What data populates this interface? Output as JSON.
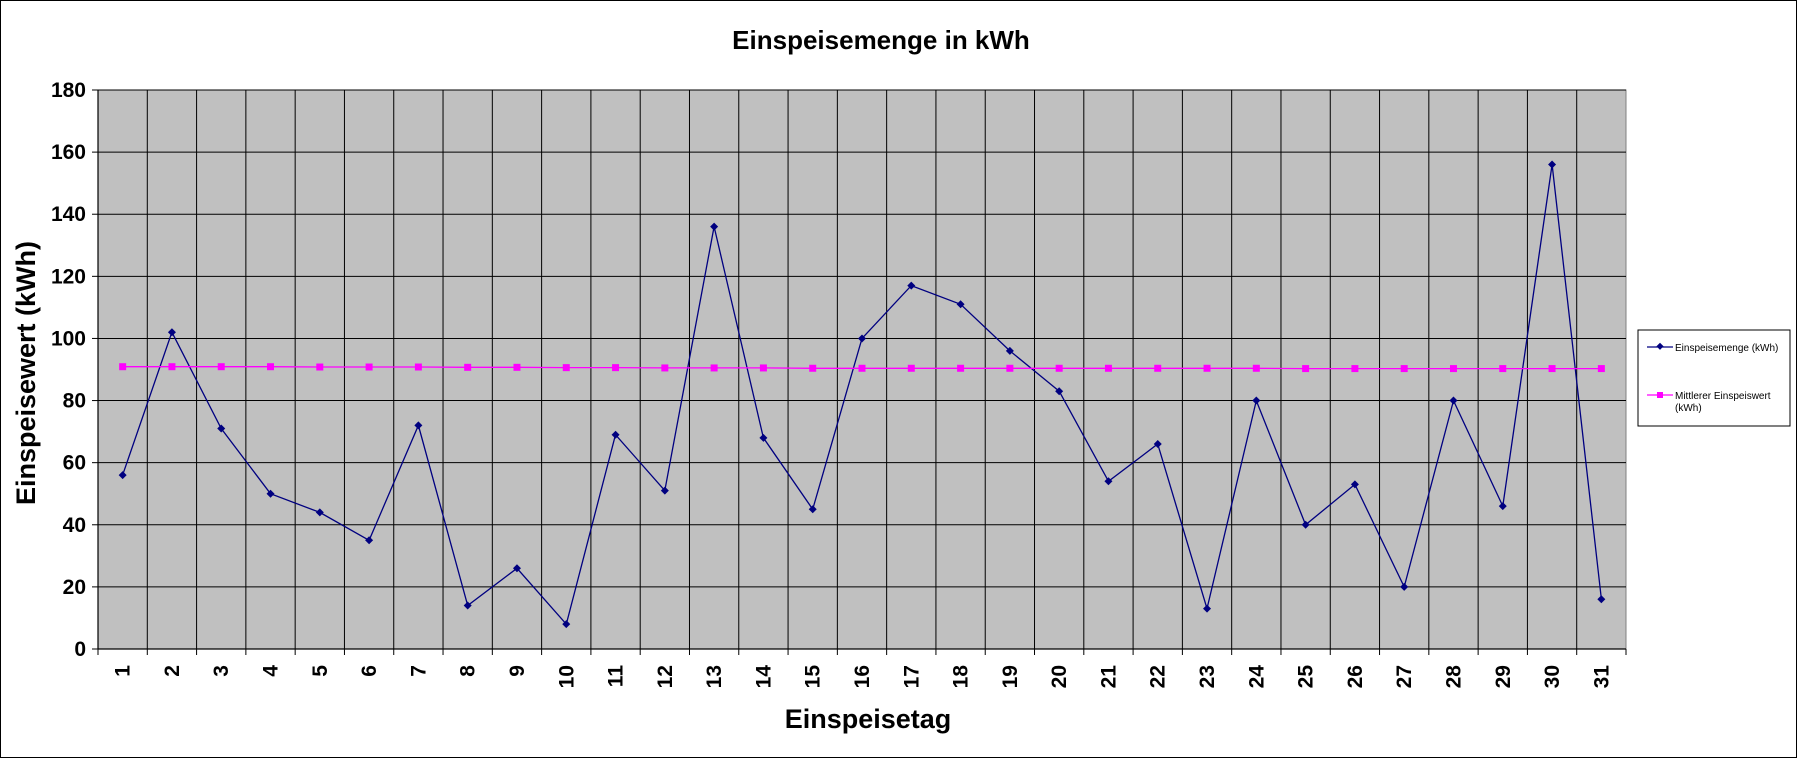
{
  "chart_data": {
    "type": "line",
    "title": "Einspeisemenge in kWh",
    "xlabel": "Einspeisetag",
    "ylabel": "Einspeisewert  (kWh)",
    "categories": [
      "1",
      "2",
      "3",
      "4",
      "5",
      "6",
      "7",
      "8",
      "9",
      "10",
      "11",
      "12",
      "13",
      "14",
      "15",
      "16",
      "17",
      "18",
      "19",
      "20",
      "21",
      "22",
      "23",
      "24",
      "25",
      "26",
      "27",
      "28",
      "29",
      "30",
      "31"
    ],
    "ylim": [
      0,
      180
    ],
    "yticks": [
      0,
      20,
      40,
      60,
      80,
      100,
      120,
      140,
      160,
      180
    ],
    "grid": true,
    "legend_position": "right",
    "plot_background": "#c0c0c0",
    "series": [
      {
        "name": "Einspeisemenge (kWh)",
        "color": "#000080",
        "marker": "diamond",
        "values": [
          56,
          102,
          71,
          50,
          44,
          35,
          72,
          14,
          26,
          8,
          69,
          51,
          136,
          68,
          45,
          100,
          117,
          111,
          96,
          83,
          54,
          66,
          13,
          80,
          40,
          53,
          20,
          80,
          46,
          156,
          16
        ]
      },
      {
        "name": "Mittlerer Einspeiswert (kWh)",
        "color": "#ff00ff",
        "marker": "square",
        "values": [
          90.9,
          90.9,
          90.9,
          90.9,
          90.8,
          90.8,
          90.8,
          90.7,
          90.7,
          90.6,
          90.6,
          90.5,
          90.5,
          90.5,
          90.4,
          90.4,
          90.4,
          90.4,
          90.4,
          90.4,
          90.4,
          90.4,
          90.4,
          90.4,
          90.3,
          90.3,
          90.3,
          90.3,
          90.3,
          90.3,
          90.3
        ]
      }
    ]
  }
}
